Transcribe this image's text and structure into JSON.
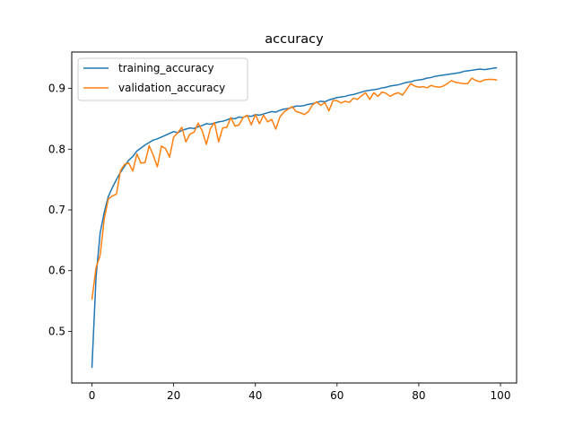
{
  "chart_data": {
    "type": "line",
    "title": "accuracy",
    "xlabel": "",
    "ylabel": "",
    "xlim": [
      -4.95,
      103.95
    ],
    "ylim": [
      0.415,
      0.96
    ],
    "xticks": [
      0,
      20,
      40,
      60,
      80,
      100
    ],
    "yticks": [
      0.5,
      0.6,
      0.7,
      0.8,
      0.9
    ],
    "xtick_labels": [
      "0",
      "20",
      "40",
      "60",
      "80",
      "100"
    ],
    "ytick_labels": [
      "0.5",
      "0.6",
      "0.7",
      "0.8",
      "0.9"
    ],
    "grid": false,
    "legend_position": "upper-left",
    "series": [
      {
        "name": "training_accuracy",
        "color": "#1f77b4",
        "values": [
          0.441,
          0.59,
          0.662,
          0.696,
          0.722,
          0.737,
          0.75,
          0.762,
          0.772,
          0.782,
          0.788,
          0.797,
          0.802,
          0.807,
          0.811,
          0.815,
          0.817,
          0.82,
          0.823,
          0.826,
          0.829,
          0.827,
          0.831,
          0.833,
          0.835,
          0.834,
          0.837,
          0.839,
          0.842,
          0.841,
          0.843,
          0.845,
          0.846,
          0.848,
          0.851,
          0.85,
          0.853,
          0.852,
          0.855,
          0.854,
          0.857,
          0.856,
          0.858,
          0.86,
          0.862,
          0.861,
          0.864,
          0.866,
          0.867,
          0.869,
          0.871,
          0.871,
          0.872,
          0.874,
          0.875,
          0.877,
          0.879,
          0.878,
          0.881,
          0.883,
          0.885,
          0.886,
          0.887,
          0.889,
          0.89,
          0.892,
          0.894,
          0.896,
          0.897,
          0.898,
          0.899,
          0.901,
          0.902,
          0.904,
          0.905,
          0.906,
          0.908,
          0.91,
          0.911,
          0.913,
          0.914,
          0.915,
          0.917,
          0.918,
          0.92,
          0.921,
          0.922,
          0.923,
          0.924,
          0.925,
          0.926,
          0.928,
          0.929,
          0.93,
          0.931,
          0.932,
          0.931,
          0.932,
          0.933,
          0.934
        ]
      },
      {
        "name": "validation_accuracy",
        "color": "#ff7f0e",
        "values": [
          0.553,
          0.605,
          0.625,
          0.685,
          0.718,
          0.723,
          0.726,
          0.765,
          0.775,
          0.777,
          0.764,
          0.792,
          0.777,
          0.778,
          0.806,
          0.79,
          0.771,
          0.805,
          0.801,
          0.787,
          0.82,
          0.827,
          0.836,
          0.812,
          0.825,
          0.828,
          0.843,
          0.83,
          0.808,
          0.834,
          0.844,
          0.812,
          0.835,
          0.836,
          0.852,
          0.838,
          0.84,
          0.852,
          0.856,
          0.84,
          0.857,
          0.842,
          0.856,
          0.845,
          0.849,
          0.833,
          0.853,
          0.861,
          0.866,
          0.87,
          0.862,
          0.86,
          0.857,
          0.862,
          0.873,
          0.878,
          0.872,
          0.877,
          0.863,
          0.88,
          0.88,
          0.876,
          0.879,
          0.877,
          0.884,
          0.882,
          0.888,
          0.893,
          0.882,
          0.893,
          0.887,
          0.894,
          0.892,
          0.887,
          0.891,
          0.893,
          0.889,
          0.898,
          0.908,
          0.904,
          0.902,
          0.903,
          0.901,
          0.905,
          0.903,
          0.902,
          0.904,
          0.908,
          0.913,
          0.91,
          0.909,
          0.908,
          0.908,
          0.917,
          0.913,
          0.911,
          0.914,
          0.915,
          0.915,
          0.914
        ]
      }
    ]
  }
}
